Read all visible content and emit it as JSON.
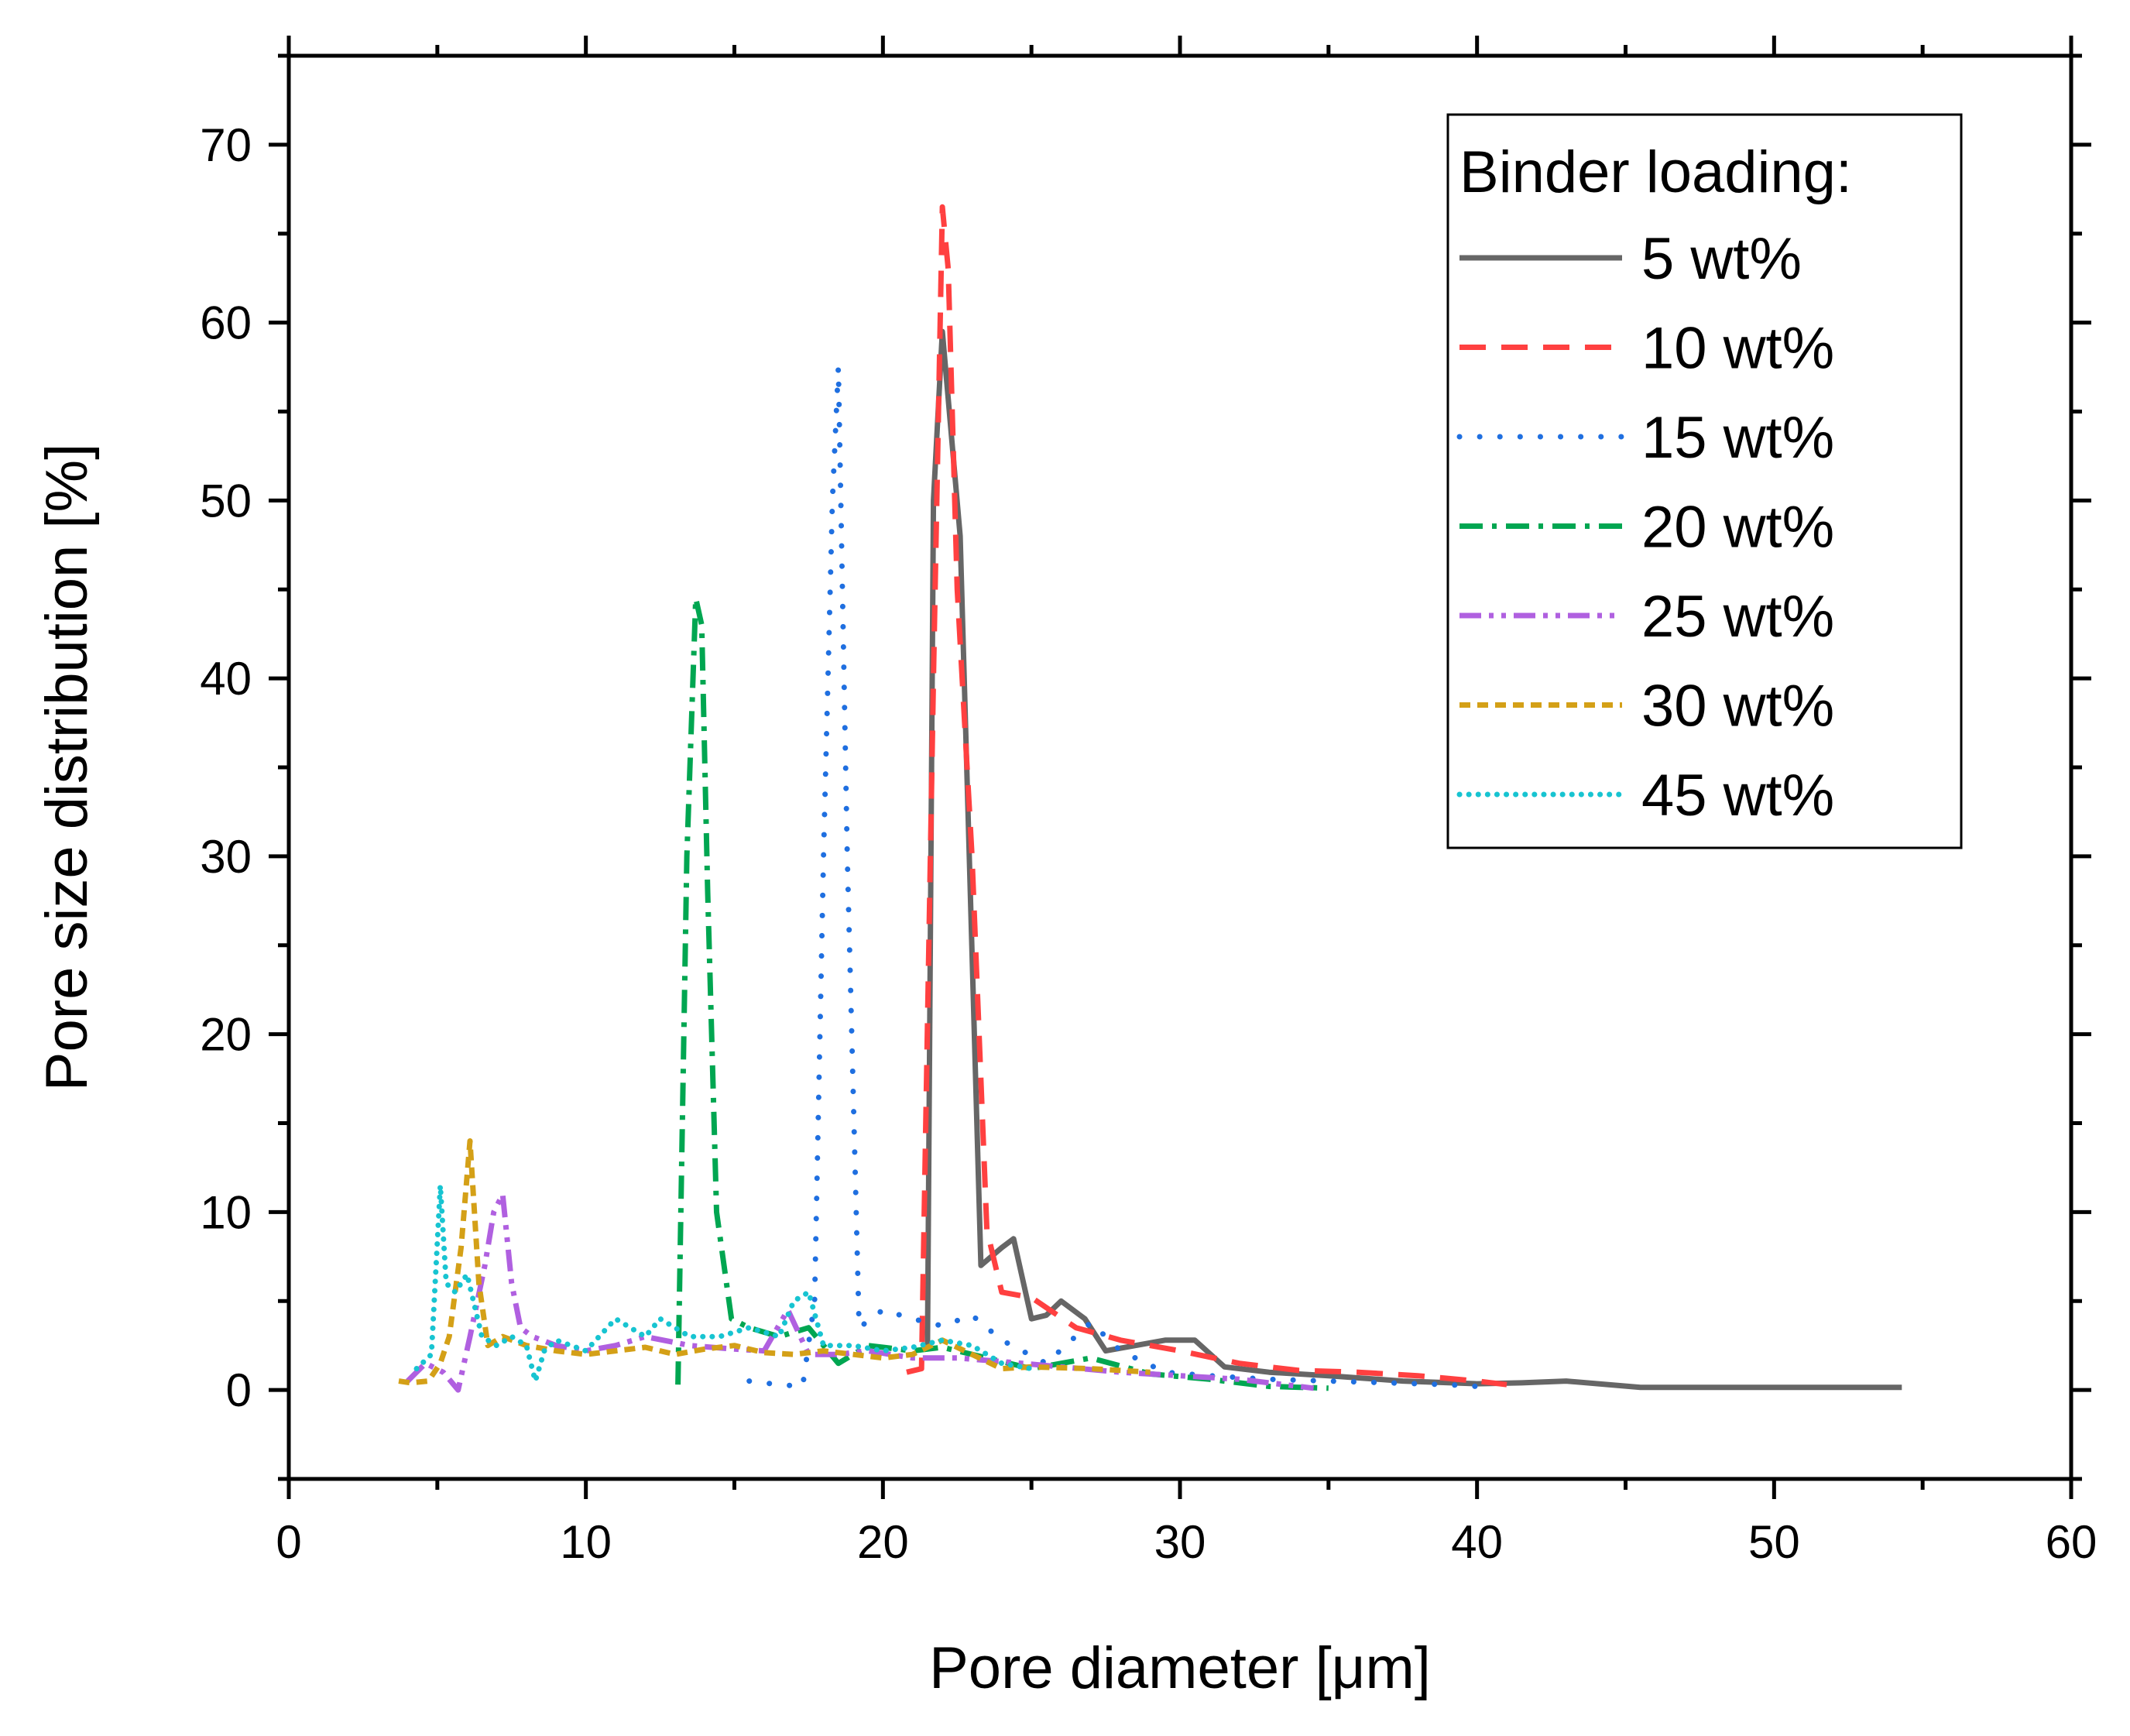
{
  "chart_data": {
    "type": "line",
    "title": "",
    "xlabel": "Pore diameter [μm]",
    "ylabel": "Pore size distribution [%]",
    "xlim": [
      0,
      60
    ],
    "ylim": [
      -5,
      75
    ],
    "xticks": [
      0,
      10,
      20,
      30,
      40,
      50,
      60
    ],
    "yticks": [
      0,
      10,
      20,
      30,
      40,
      50,
      60,
      70
    ],
    "grid": false,
    "legend": {
      "title": "Binder loading:",
      "placement": "top-right"
    },
    "series": [
      {
        "name": "5 wt%",
        "color": "#666666",
        "dash": "solid",
        "x": [
          21.5,
          21.7,
          22.0,
          22.6,
          23.3,
          24.0,
          24.4,
          25.0,
          25.5,
          26.0,
          26.8,
          27.5,
          28.5,
          29.5,
          30.5,
          31.5,
          33.0,
          35.0,
          37.5,
          40.0,
          41.5,
          43.0,
          45.5,
          48.0,
          50.0,
          52.5,
          54.3
        ],
        "y": [
          2.5,
          50,
          59.5,
          48,
          7,
          8,
          8.5,
          4,
          4.2,
          5,
          4,
          2.2,
          2.5,
          2.8,
          2.8,
          1.3,
          1.0,
          0.8,
          0.5,
          0.35,
          0.4,
          0.5,
          0.15,
          0.15,
          0.15,
          0.15,
          0.15
        ]
      },
      {
        "name": "10 wt%",
        "color": "#ff4040",
        "dash": "dashed",
        "x": [
          20.8,
          21.3,
          21.7,
          22.0,
          22.2,
          22.5,
          23.0,
          23.5,
          24.0,
          25.0,
          26.5,
          28.0,
          30.0,
          32.0,
          34.0,
          36.0,
          38.0,
          40.0,
          41.0
        ],
        "y": [
          1.0,
          1.2,
          40,
          66.5,
          63,
          45,
          30,
          9,
          5.5,
          5.2,
          3.5,
          2.8,
          2.2,
          1.5,
          1.1,
          1.0,
          0.8,
          0.5,
          0.3
        ]
      },
      {
        "name": "15 wt%",
        "color": "#1f6fe0",
        "dash": "dotted",
        "x": [
          15.5,
          16.5,
          17.3,
          17.7,
          18.0,
          18.3,
          18.5,
          18.8,
          19.2,
          20.0,
          21.0,
          22.0,
          23.0,
          24.0,
          25.5,
          27.0,
          28.0,
          29.5,
          31.0,
          33.0,
          35.0,
          37.0,
          39.0,
          40.0
        ],
        "y": [
          0.5,
          0.3,
          0.2,
          5,
          30,
          50,
          57.5,
          30,
          3.5,
          4.5,
          4.0,
          3.6,
          4.2,
          2.8,
          1.5,
          3.8,
          2.2,
          1.0,
          0.8,
          0.6,
          0.5,
          0.4,
          0.3,
          0.2
        ]
      },
      {
        "name": "20 wt%",
        "color": "#00a651",
        "dash": "dashdot",
        "x": [
          13.1,
          13.4,
          13.7,
          13.9,
          14.1,
          14.4,
          14.9,
          15.5,
          16.5,
          17.5,
          18.5,
          19.5,
          21.0,
          22.0,
          23.5,
          25.0,
          27.0,
          29.0,
          31.0,
          33.0,
          35.0
        ],
        "y": [
          0.3,
          30,
          44.5,
          43,
          28,
          10,
          4,
          3.5,
          3.0,
          3.5,
          1.5,
          2.5,
          2.2,
          2.4,
          1.8,
          1.2,
          1.8,
          0.9,
          0.6,
          0.2,
          0.1
        ]
      },
      {
        "name": "25 wt%",
        "color": "#b060e0",
        "dash": "dashdotdot",
        "x": [
          4.0,
          4.6,
          5.2,
          5.7,
          6.1,
          6.6,
          6.9,
          7.2,
          7.5,
          7.8,
          8.2,
          9.0,
          10.0,
          11.0,
          12.0,
          13.5,
          15.0,
          16.0,
          16.8,
          17.5,
          18.5,
          19.5,
          21.0,
          22.5,
          24.0,
          26.0,
          28.0,
          30.0,
          32.0,
          34.5
        ],
        "y": [
          0.5,
          1.5,
          1.0,
          0.0,
          3,
          7,
          10,
          11,
          6,
          3.5,
          3.0,
          2.5,
          2.2,
          2.5,
          3.0,
          2.5,
          2.3,
          2.2,
          4.5,
          2.0,
          2.0,
          2.2,
          1.8,
          1.8,
          1.6,
          1.3,
          1.0,
          0.8,
          0.6,
          0.1
        ]
      },
      {
        "name": "30 wt%",
        "color": "#d4a017",
        "dash": "shortdash",
        "x": [
          3.7,
          4.1,
          4.7,
          5.1,
          5.4,
          5.8,
          6.1,
          6.4,
          6.7,
          7.2,
          8.0,
          9.0,
          10.0,
          11.0,
          12.0,
          13.0,
          14.0,
          15.0,
          16.0,
          17.0,
          18.0,
          19.0,
          20.0,
          21.0,
          22.0,
          23.0,
          24.0,
          25.0,
          27.0,
          29.0
        ],
        "y": [
          0.5,
          0.4,
          0.5,
          1.5,
          3,
          8,
          14,
          6,
          2.5,
          3.0,
          2.5,
          2.2,
          2.0,
          2.2,
          2.4,
          2.0,
          2.3,
          2.5,
          2.1,
          2.0,
          2.2,
          2.0,
          1.8,
          2.0,
          2.8,
          2.0,
          1.2,
          1.3,
          1.2,
          1.0
        ]
      },
      {
        "name": "45 wt%",
        "color": "#17c4d1",
        "dash": "finedot",
        "x": [
          4.3,
          4.8,
          5.1,
          5.3,
          5.6,
          6.0,
          6.5,
          7.0,
          7.5,
          8.0,
          8.3,
          8.6,
          9.0,
          10.0,
          11.0,
          12.0,
          12.5,
          13.0,
          13.5,
          14.5,
          15.5,
          16.5,
          17.0,
          17.5,
          18.0,
          19.0,
          20.0,
          21.0,
          22.0,
          23.0,
          24.0,
          25.0
        ],
        "y": [
          1.2,
          2,
          11.5,
          6,
          5.5,
          6.5,
          3,
          2.5,
          3,
          2.5,
          0.5,
          2.2,
          2.8,
          2.2,
          4.0,
          3.0,
          4.0,
          3.5,
          3.0,
          3.0,
          3.5,
          3.0,
          5.0,
          5.5,
          2.5,
          2.5,
          2.2,
          2.4,
          2.8,
          2.5,
          1.5,
          1.2
        ]
      }
    ]
  }
}
